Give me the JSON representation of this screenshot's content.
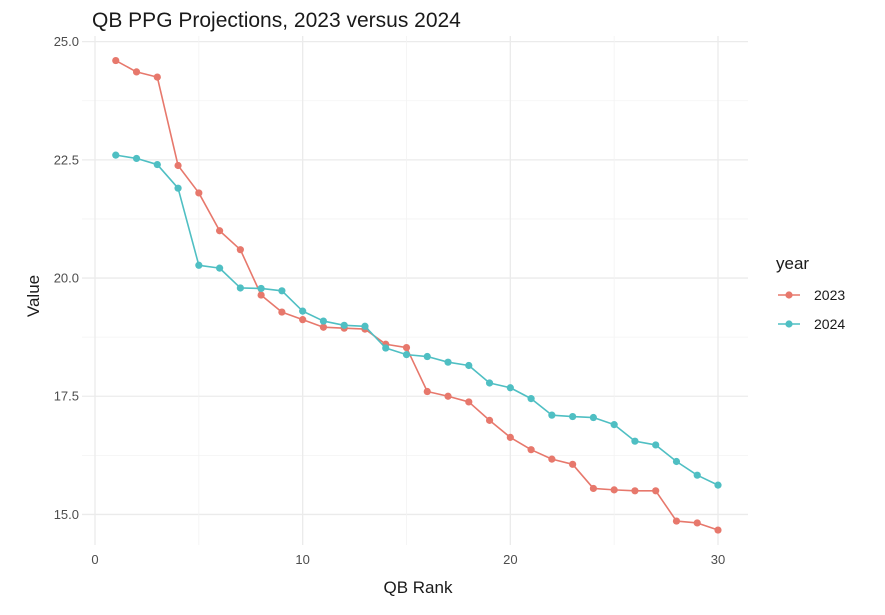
{
  "chart_data": {
    "type": "line",
    "title": "QB PPG Projections, 2023 versus 2024",
    "xlabel": "QB Rank",
    "ylabel": "Value",
    "xlim": [
      0,
      30
    ],
    "ylim": [
      14.65,
      24.95
    ],
    "x_ticks": [
      "0",
      "10",
      "20",
      "30"
    ],
    "y_ticks": [
      "15.0",
      "17.5",
      "20.0",
      "22.5",
      "25.0"
    ],
    "grid": true,
    "legend": {
      "title": "year",
      "position": "right"
    },
    "x": [
      1,
      2,
      3,
      4,
      5,
      6,
      7,
      8,
      9,
      10,
      11,
      12,
      13,
      14,
      15,
      16,
      17,
      18,
      19,
      20,
      21,
      22,
      23,
      24,
      25,
      26,
      27,
      28,
      29,
      30
    ],
    "series": [
      {
        "name": "2023",
        "color": "#E7786C",
        "values": [
          24.6,
          24.36,
          24.25,
          22.38,
          21.8,
          21.0,
          20.6,
          19.64,
          19.28,
          19.12,
          18.96,
          18.94,
          18.92,
          18.6,
          18.53,
          17.6,
          17.5,
          17.38,
          16.99,
          16.63,
          16.37,
          16.17,
          16.06,
          15.55,
          15.52,
          15.5,
          15.5,
          14.86,
          14.82,
          14.67
        ]
      },
      {
        "name": "2024",
        "color": "#4FBFC3",
        "values": [
          22.6,
          22.53,
          22.4,
          21.9,
          20.27,
          20.21,
          19.79,
          19.78,
          19.73,
          19.3,
          19.09,
          19.0,
          18.98,
          18.52,
          18.38,
          18.34,
          18.22,
          18.15,
          17.78,
          17.68,
          17.45,
          17.1,
          17.07,
          17.05,
          16.9,
          16.55,
          16.47,
          16.12,
          15.83,
          15.62
        ]
      }
    ]
  }
}
